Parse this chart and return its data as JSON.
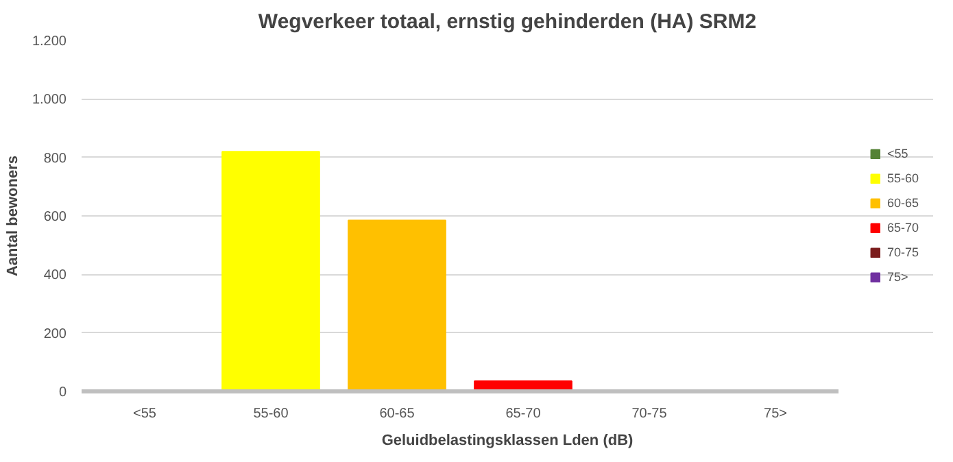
{
  "chart_data": {
    "type": "bar",
    "title": "Wegverkeer totaal, ernstig gehinderden (HA) SRM2",
    "xlabel": "Geluidbelastingsklassen Lden (dB)",
    "ylabel": "Aantal bewoners",
    "categories": [
      "<55",
      "55-60",
      "60-65",
      "65-70",
      "70-75",
      "75>"
    ],
    "series": [
      {
        "name": "<55",
        "color": "#548235",
        "values": [
          0,
          null,
          null,
          null,
          null,
          null
        ]
      },
      {
        "name": "55-60",
        "color": "#ffff00",
        "values": [
          null,
          820,
          null,
          null,
          null,
          null
        ]
      },
      {
        "name": "60-65",
        "color": "#ffc000",
        "values": [
          null,
          null,
          585,
          null,
          null,
          null
        ]
      },
      {
        "name": "65-70",
        "color": "#ff0000",
        "values": [
          null,
          null,
          null,
          35,
          null,
          null
        ]
      },
      {
        "name": "70-75",
        "color": "#7b1c1c",
        "values": [
          null,
          null,
          null,
          null,
          0,
          null
        ]
      },
      {
        "name": "75>",
        "color": "#7030a0",
        "values": [
          null,
          null,
          null,
          null,
          null,
          0
        ]
      }
    ],
    "ylim": [
      0,
      1200
    ],
    "yticks": [
      0,
      {
        "value": 200,
        "label": "200"
      },
      {
        "value": 400,
        "label": "400"
      },
      {
        "value": 600,
        "label": "600"
      },
      {
        "value": 800,
        "label": "800"
      },
      {
        "value": 1000,
        "label": "1.000"
      },
      {
        "value": 1200,
        "label": "1.200"
      }
    ],
    "grid": "y",
    "legend": "right"
  }
}
